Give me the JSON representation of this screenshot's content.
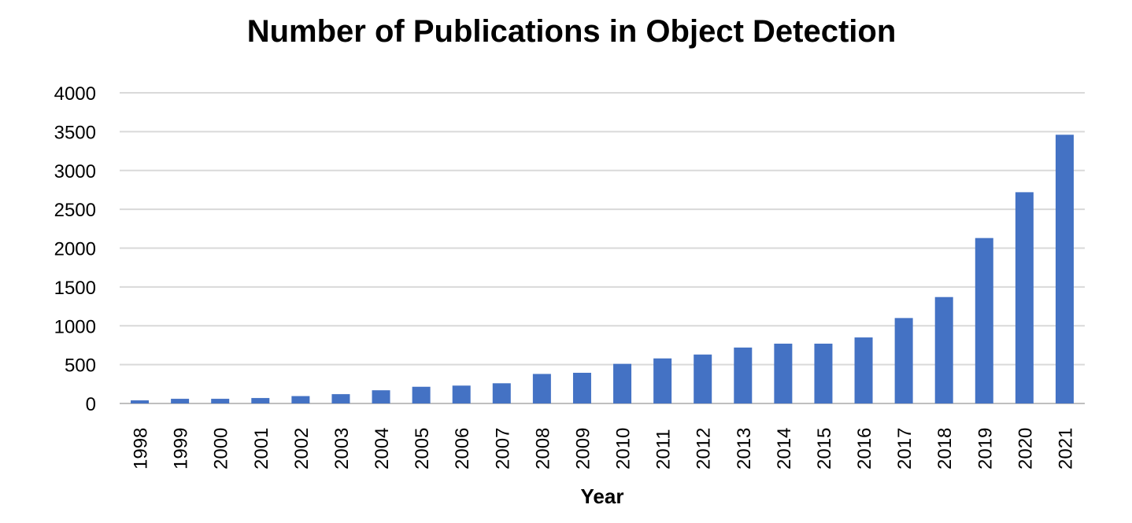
{
  "chart_data": {
    "type": "bar",
    "title": "Number of Publications in Object Detection",
    "xlabel": "Year",
    "ylabel": "",
    "ylim": [
      0,
      4000
    ],
    "yticks": [
      "0",
      "500",
      "1000",
      "1500",
      "2000",
      "2500",
      "3000",
      "3500",
      "4000"
    ],
    "grid": true,
    "legend": "none",
    "bar_color": "#4472C4",
    "grid_color": "#D9D9D9",
    "categories": [
      "1998",
      "1999",
      "2000",
      "2001",
      "2002",
      "2003",
      "2004",
      "2005",
      "2006",
      "2007",
      "2008",
      "2009",
      "2010",
      "2011",
      "2012",
      "2013",
      "2014",
      "2015",
      "2016",
      "2017",
      "2018",
      "2019",
      "2020",
      "2021"
    ],
    "series": [
      {
        "values": [
          40,
          60,
          60,
          70,
          95,
          120,
          170,
          215,
          230,
          260,
          380,
          395,
          510,
          580,
          630,
          720,
          770,
          770,
          850,
          1100,
          1370,
          2130,
          2720,
          3460
        ]
      }
    ]
  }
}
